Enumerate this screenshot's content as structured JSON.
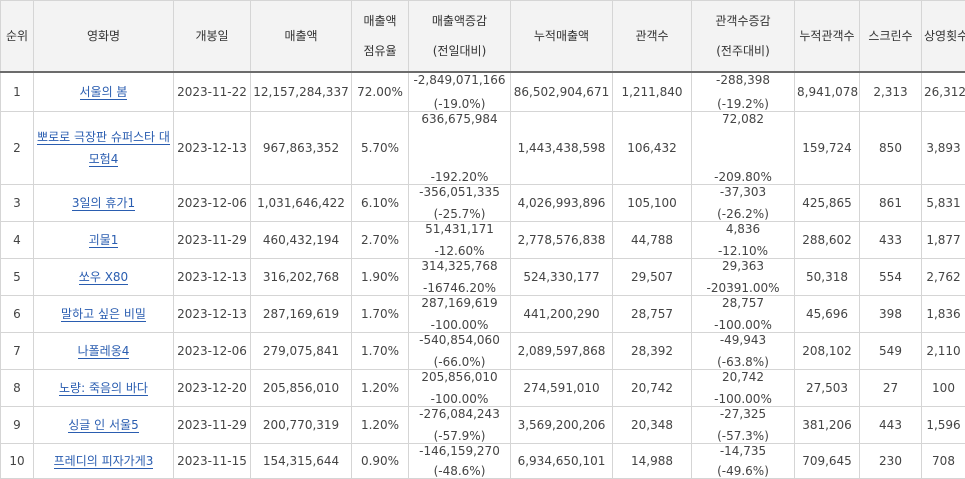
{
  "headers": {
    "rank": "순위",
    "title": "영화명",
    "open_date": "개봉일",
    "sales": "매출액",
    "share_l1": "매출액",
    "share_l2": "점유율",
    "sales_delta_l1": "매출액증감",
    "sales_delta_l2": "(전일대비)",
    "cum_sales": "누적매출액",
    "audience": "관객수",
    "aud_delta_l1": "관객수증감",
    "aud_delta_l2": "(전주대비)",
    "cum_audience": "누적관객수",
    "screens": "스크린수",
    "shows": "상영횟수"
  },
  "rows": [
    {
      "rank": "1",
      "title": "서울의 봄",
      "open": "2023-11-22",
      "sales": "12,157,284,337",
      "share": "72.00%",
      "sd": "-2,849,071,166",
      "sp": "(-19.0%)",
      "cum": "86,502,904,671",
      "aud": "1,211,840",
      "ad": "-288,398",
      "ap": "(-19.2%)",
      "cum_aud": "8,941,078",
      "screens": "2,313",
      "shows": "26,312"
    },
    {
      "rank": "2",
      "title": "뽀로로 극장판 슈퍼스타 대모험4",
      "open": "2023-12-13",
      "sales": "967,863,352",
      "share": "5.70%",
      "sd": "636,675,984",
      "sp": "-192.20%",
      "cum": "1,443,438,598",
      "aud": "106,432",
      "ad": "72,082",
      "ap": "-209.80%",
      "cum_aud": "159,724",
      "screens": "850",
      "shows": "3,893"
    },
    {
      "rank": "3",
      "title": "3일의 휴가1",
      "open": "2023-12-06",
      "sales": "1,031,646,422",
      "share": "6.10%",
      "sd": "-356,051,335",
      "sp": "(-25.7%)",
      "cum": "4,026,993,896",
      "aud": "105,100",
      "ad": "-37,303",
      "ap": "(-26.2%)",
      "cum_aud": "425,865",
      "screens": "861",
      "shows": "5,831"
    },
    {
      "rank": "4",
      "title": "괴물1",
      "open": "2023-11-29",
      "sales": "460,432,194",
      "share": "2.70%",
      "sd": "51,431,171",
      "sp": "-12.60%",
      "cum": "2,778,576,838",
      "aud": "44,788",
      "ad": "4,836",
      "ap": "-12.10%",
      "cum_aud": "288,602",
      "screens": "433",
      "shows": "1,877"
    },
    {
      "rank": "5",
      "title": "쏘우 X80",
      "open": "2023-12-13",
      "sales": "316,202,768",
      "share": "1.90%",
      "sd": "314,325,768",
      "sp": "-16746.20%",
      "cum": "524,330,177",
      "aud": "29,507",
      "ad": "29,363",
      "ap": "-20391.00%",
      "cum_aud": "50,318",
      "screens": "554",
      "shows": "2,762"
    },
    {
      "rank": "6",
      "title": "말하고 싶은 비밀",
      "open": "2023-12-13",
      "sales": "287,169,619",
      "share": "1.70%",
      "sd": "287,169,619",
      "sp": "-100.00%",
      "cum": "441,200,290",
      "aud": "28,757",
      "ad": "28,757",
      "ap": "-100.00%",
      "cum_aud": "45,696",
      "screens": "398",
      "shows": "1,836"
    },
    {
      "rank": "7",
      "title": "나폴레옹4",
      "open": "2023-12-06",
      "sales": "279,075,841",
      "share": "1.70%",
      "sd": "-540,854,060",
      "sp": "(-66.0%)",
      "cum": "2,089,597,868",
      "aud": "28,392",
      "ad": "-49,943",
      "ap": "(-63.8%)",
      "cum_aud": "208,102",
      "screens": "549",
      "shows": "2,110"
    },
    {
      "rank": "8",
      "title": "노량: 죽음의 바다",
      "open": "2023-12-20",
      "sales": "205,856,010",
      "share": "1.20%",
      "sd": "205,856,010",
      "sp": "-100.00%",
      "cum": "274,591,010",
      "aud": "20,742",
      "ad": "20,742",
      "ap": "-100.00%",
      "cum_aud": "27,503",
      "screens": "27",
      "shows": "100"
    },
    {
      "rank": "9",
      "title": "싱글 인 서울5",
      "open": "2023-11-29",
      "sales": "200,770,319",
      "share": "1.20%",
      "sd": "-276,084,243",
      "sp": "(-57.9%)",
      "cum": "3,569,200,206",
      "aud": "20,348",
      "ad": "-27,325",
      "ap": "(-57.3%)",
      "cum_aud": "381,206",
      "screens": "443",
      "shows": "1,596"
    },
    {
      "rank": "10",
      "title": "프레디의 피자가게3",
      "open": "2023-11-15",
      "sales": "154,315,644",
      "share": "0.90%",
      "sd": "-146,159,270",
      "sp": "(-48.6%)",
      "cum": "6,934,650,101",
      "aud": "14,988",
      "ad": "-14,735",
      "ap": "(-49.6%)",
      "cum_aud": "709,645",
      "screens": "230",
      "shows": "708"
    }
  ]
}
